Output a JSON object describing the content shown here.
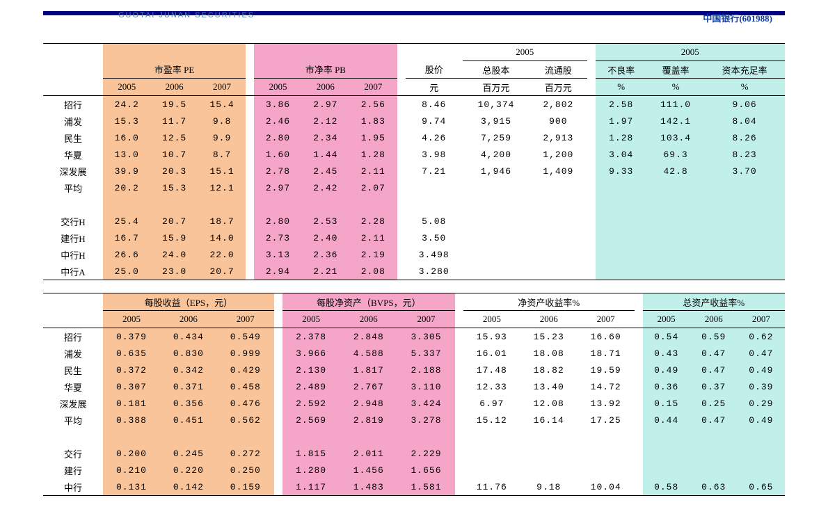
{
  "header": {
    "broker": "GUOTAI JUNAN SECURITIES",
    "stock": "中国银行(601988)"
  },
  "colors": {
    "orange": "#f9c499",
    "pink": "#f5a6c8",
    "cyan": "#c1f0eb",
    "navy": "#000080"
  },
  "table1": {
    "group_headers": {
      "pe": "市盈率 PE",
      "pb": "市净率 PB",
      "year_2005": "2005",
      "price": "股价",
      "price_unit": "元",
      "shares": "总股本",
      "shares_unit": "百万元",
      "float": "流通股",
      "float_unit": "百万元",
      "npl": "不良率",
      "cover": "覆盖率",
      "car": "资本充足率",
      "pct": "%"
    },
    "years": [
      "2005",
      "2006",
      "2007"
    ],
    "rows": [
      {
        "name": "招行",
        "pe": [
          "24.2",
          "19.5",
          "15.4"
        ],
        "pb": [
          "3.86",
          "2.97",
          "2.56"
        ],
        "price": "8.46",
        "shares": "10,374",
        "float": "2,802",
        "npl": "2.58",
        "cover": "111.0",
        "car": "9.06"
      },
      {
        "name": "浦发",
        "pe": [
          "15.3",
          "11.7",
          "9.8"
        ],
        "pb": [
          "2.46",
          "2.12",
          "1.83"
        ],
        "price": "9.74",
        "shares": "3,915",
        "float": "900",
        "npl": "1.97",
        "cover": "142.1",
        "car": "8.04"
      },
      {
        "name": "民生",
        "pe": [
          "16.0",
          "12.5",
          "9.9"
        ],
        "pb": [
          "2.80",
          "2.34",
          "1.95"
        ],
        "price": "4.26",
        "shares": "7,259",
        "float": "2,913",
        "npl": "1.28",
        "cover": "103.4",
        "car": "8.26"
      },
      {
        "name": "华夏",
        "pe": [
          "13.0",
          "10.7",
          "8.7"
        ],
        "pb": [
          "1.60",
          "1.44",
          "1.28"
        ],
        "price": "3.98",
        "shares": "4,200",
        "float": "1,200",
        "npl": "3.04",
        "cover": "69.3",
        "car": "8.23"
      },
      {
        "name": "深发展",
        "pe": [
          "39.9",
          "20.3",
          "15.1"
        ],
        "pb": [
          "2.78",
          "2.45",
          "2.11"
        ],
        "price": "7.21",
        "shares": "1,946",
        "float": "1,409",
        "npl": "9.33",
        "cover": "42.8",
        "car": "3.70"
      },
      {
        "name": "平均",
        "pe": [
          "20.2",
          "15.3",
          "12.1"
        ],
        "pb": [
          "2.97",
          "2.42",
          "2.07"
        ],
        "price": "",
        "shares": "",
        "float": "",
        "npl": "",
        "cover": "",
        "car": ""
      },
      {
        "name": "",
        "pe": [
          "",
          "",
          ""
        ],
        "pb": [
          "",
          "",
          ""
        ],
        "price": "",
        "shares": "",
        "float": "",
        "npl": "",
        "cover": "",
        "car": ""
      },
      {
        "name": "交行H",
        "pe": [
          "25.4",
          "20.7",
          "18.7"
        ],
        "pb": [
          "2.80",
          "2.53",
          "2.28"
        ],
        "price": "5.08",
        "shares": "",
        "float": "",
        "npl": "",
        "cover": "",
        "car": ""
      },
      {
        "name": "建行H",
        "pe": [
          "16.7",
          "15.9",
          "14.0"
        ],
        "pb": [
          "2.73",
          "2.40",
          "2.11"
        ],
        "price": "3.50",
        "shares": "",
        "float": "",
        "npl": "",
        "cover": "",
        "car": ""
      },
      {
        "name": "中行H",
        "pe": [
          "26.6",
          "24.0",
          "22.0"
        ],
        "pb": [
          "3.13",
          "2.36",
          "2.19"
        ],
        "price": "3.498",
        "shares": "",
        "float": "",
        "npl": "",
        "cover": "",
        "car": ""
      },
      {
        "name": "中行A",
        "pe": [
          "25.0",
          "23.0",
          "20.7"
        ],
        "pb": [
          "2.94",
          "2.21",
          "2.08"
        ],
        "price": "3.280",
        "shares": "",
        "float": "",
        "npl": "",
        "cover": "",
        "car": ""
      }
    ]
  },
  "table2": {
    "group_headers": {
      "eps": "每股收益（EPS，元）",
      "bvps": "每股净资产（BVPS，元）",
      "roe": "净资产收益率%",
      "roa": "总资产收益率%"
    },
    "years": [
      "2005",
      "2006",
      "2007"
    ],
    "rows": [
      {
        "name": "招行",
        "eps": [
          "0.379",
          "0.434",
          "0.549"
        ],
        "bvps": [
          "2.378",
          "2.848",
          "3.305"
        ],
        "roe": [
          "15.93",
          "15.23",
          "16.60"
        ],
        "roa": [
          "0.54",
          "0.59",
          "0.62"
        ]
      },
      {
        "name": "浦发",
        "eps": [
          "0.635",
          "0.830",
          "0.999"
        ],
        "bvps": [
          "3.966",
          "4.588",
          "5.337"
        ],
        "roe": [
          "16.01",
          "18.08",
          "18.71"
        ],
        "roa": [
          "0.43",
          "0.47",
          "0.47"
        ]
      },
      {
        "name": "民生",
        "eps": [
          "0.372",
          "0.342",
          "0.429"
        ],
        "bvps": [
          "2.130",
          "1.817",
          "2.188"
        ],
        "roe": [
          "17.48",
          "18.82",
          "19.59"
        ],
        "roa": [
          "0.49",
          "0.47",
          "0.49"
        ]
      },
      {
        "name": "华夏",
        "eps": [
          "0.307",
          "0.371",
          "0.458"
        ],
        "bvps": [
          "2.489",
          "2.767",
          "3.110"
        ],
        "roe": [
          "12.33",
          "13.40",
          "14.72"
        ],
        "roa": [
          "0.36",
          "0.37",
          "0.39"
        ]
      },
      {
        "name": "深发展",
        "eps": [
          "0.181",
          "0.356",
          "0.476"
        ],
        "bvps": [
          "2.592",
          "2.948",
          "3.424"
        ],
        "roe": [
          "6.97",
          "12.08",
          "13.92"
        ],
        "roa": [
          "0.15",
          "0.25",
          "0.29"
        ]
      },
      {
        "name": "平均",
        "eps": [
          "0.388",
          "0.451",
          "0.562"
        ],
        "bvps": [
          "2.569",
          "2.819",
          "3.278"
        ],
        "roe": [
          "15.12",
          "16.14",
          "17.25"
        ],
        "roa": [
          "0.44",
          "0.47",
          "0.49"
        ]
      },
      {
        "name": "",
        "eps": [
          "",
          "",
          ""
        ],
        "bvps": [
          "",
          "",
          ""
        ],
        "roe": [
          "",
          "",
          ""
        ],
        "roa": [
          "",
          "",
          ""
        ]
      },
      {
        "name": "交行",
        "eps": [
          "0.200",
          "0.245",
          "0.272"
        ],
        "bvps": [
          "1.815",
          "2.011",
          "2.229"
        ],
        "roe": [
          "",
          "",
          ""
        ],
        "roa": [
          "",
          "",
          ""
        ]
      },
      {
        "name": "建行",
        "eps": [
          "0.210",
          "0.220",
          "0.250"
        ],
        "bvps": [
          "1.280",
          "1.456",
          "1.656"
        ],
        "roe": [
          "",
          "",
          ""
        ],
        "roa": [
          "",
          "",
          ""
        ]
      },
      {
        "name": "中行",
        "eps": [
          "0.131",
          "0.142",
          "0.159"
        ],
        "bvps": [
          "1.117",
          "1.483",
          "1.581"
        ],
        "roe": [
          "11.76",
          "9.18",
          "10.04"
        ],
        "roa": [
          "0.58",
          "0.63",
          "0.65"
        ]
      }
    ]
  }
}
